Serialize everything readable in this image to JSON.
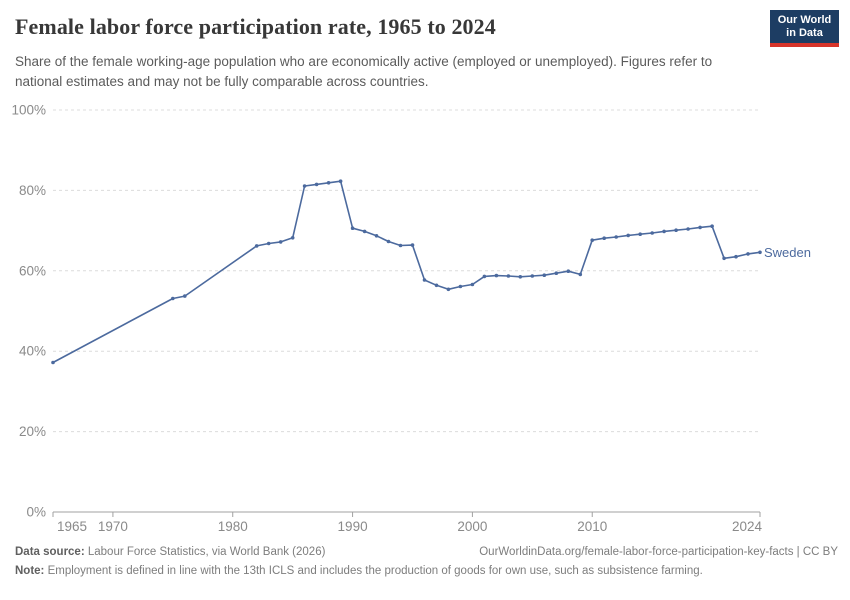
{
  "header": {
    "title": "Female labor force participation rate, 1965 to 2024",
    "subtitle": "Share of the female working-age population who are economically active (employed or unemployed). Figures refer to national estimates and may not be fully comparable across countries."
  },
  "logo": {
    "line1": "Our World",
    "line2": "in Data",
    "bg_color": "#1d3d63",
    "accent_color": "#d7342a"
  },
  "chart_data": {
    "type": "line",
    "title": "Female labor force participation rate, 1965 to 2024",
    "xlabel": "",
    "ylabel": "",
    "xlim": [
      1965,
      2024
    ],
    "ylim": [
      0,
      100
    ],
    "xticks": [
      1965,
      1970,
      1980,
      1990,
      2000,
      2010,
      2024
    ],
    "yticks": [
      0,
      20,
      40,
      60,
      80,
      100
    ],
    "ytick_suffix": "%",
    "grid": "horizontal-dashed",
    "legend_position": "end-of-line-label",
    "series": [
      {
        "name": "Sweden",
        "color": "#4c6a9e",
        "points": [
          [
            1965,
            37.2
          ],
          [
            1975,
            53.1
          ],
          [
            1976,
            53.7
          ],
          [
            1982,
            66.2
          ],
          [
            1983,
            66.8
          ],
          [
            1984,
            67.2
          ],
          [
            1985,
            68.2
          ],
          [
            1986,
            81.1
          ],
          [
            1987,
            81.5
          ],
          [
            1988,
            81.9
          ],
          [
            1989,
            82.3
          ],
          [
            1990,
            70.6
          ],
          [
            1991,
            69.8
          ],
          [
            1992,
            68.7
          ],
          [
            1993,
            67.3
          ],
          [
            1994,
            66.3
          ],
          [
            1995,
            66.4
          ],
          [
            1996,
            57.7
          ],
          [
            1997,
            56.4
          ],
          [
            1998,
            55.4
          ],
          [
            1999,
            56.1
          ],
          [
            2000,
            56.6
          ],
          [
            2001,
            58.6
          ],
          [
            2002,
            58.8
          ],
          [
            2003,
            58.7
          ],
          [
            2004,
            58.5
          ],
          [
            2005,
            58.7
          ],
          [
            2006,
            58.9
          ],
          [
            2007,
            59.4
          ],
          [
            2008,
            59.9
          ],
          [
            2009,
            59.1
          ],
          [
            2010,
            67.6
          ],
          [
            2011,
            68.1
          ],
          [
            2012,
            68.4
          ],
          [
            2013,
            68.8
          ],
          [
            2014,
            69.1
          ],
          [
            2015,
            69.4
          ],
          [
            2016,
            69.8
          ],
          [
            2017,
            70.1
          ],
          [
            2018,
            70.4
          ],
          [
            2019,
            70.8
          ],
          [
            2020,
            71.1
          ],
          [
            2021,
            63.1
          ],
          [
            2022,
            63.5
          ],
          [
            2023,
            64.2
          ],
          [
            2024,
            64.6
          ]
        ]
      }
    ],
    "colors": {
      "gridline": "#dcdcdc",
      "axis": "#a1a1a1",
      "tick_label": "#8a8a8a"
    }
  },
  "footer": {
    "datasource_label": "Data source:",
    "datasource_text": " Labour Force Statistics, via World Bank (2026)",
    "url_text": "OurWorldinData.org/female-labor-force-participation-key-facts | CC BY",
    "note_label": "Note:",
    "note_text": " Employment is defined in line with the 13th ICLS and includes the production of goods for own use, such as subsistence farming."
  }
}
